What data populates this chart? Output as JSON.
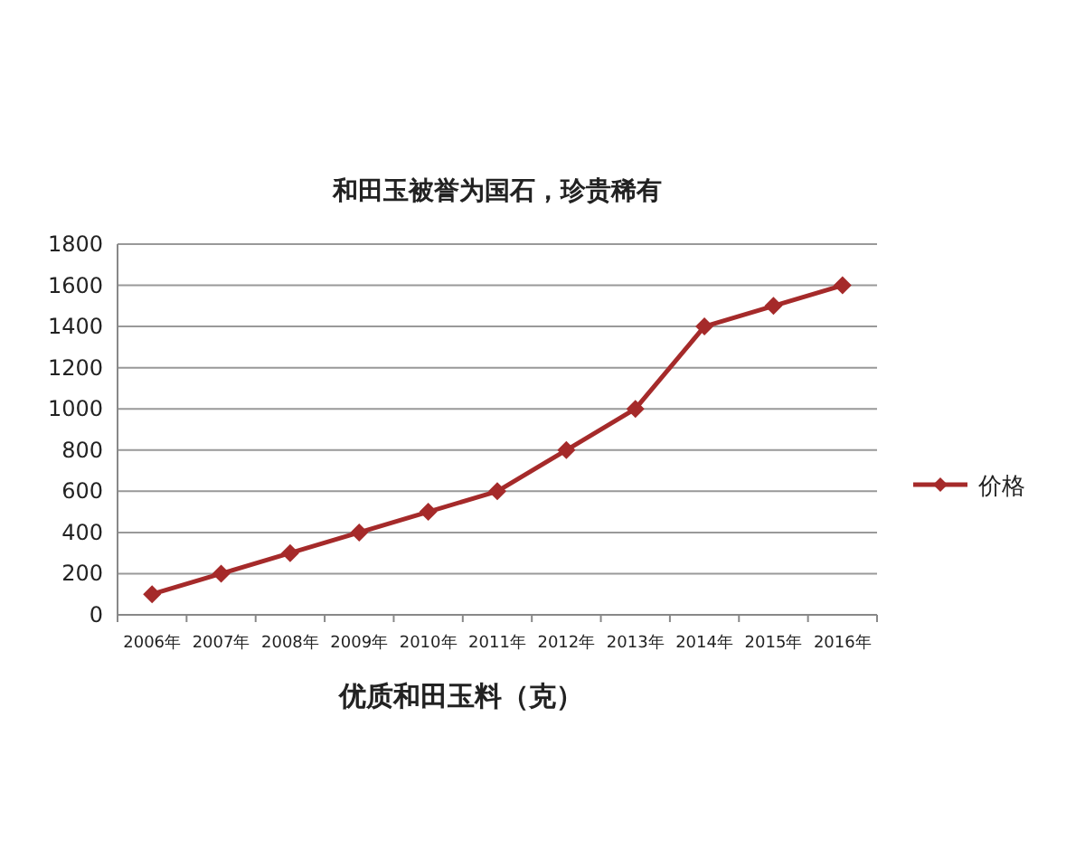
{
  "chart_data": {
    "type": "line",
    "title": "和田玉被誉为国石，珍贵稀有",
    "xlabel": "优质和田玉料（克）",
    "categories": [
      "2006年",
      "2007年",
      "2008年",
      "2009年",
      "2010年",
      "2011年",
      "2012年",
      "2013年",
      "2014年",
      "2015年",
      "2016年"
    ],
    "series": [
      {
        "name": "价格",
        "color": "#a52a2a",
        "values": [
          100,
          200,
          300,
          400,
          500,
          600,
          800,
          1000,
          1400,
          1500,
          1600
        ]
      }
    ],
    "ylim": [
      0,
      1800
    ],
    "yticks": [
      0,
      200,
      400,
      600,
      800,
      1000,
      1200,
      1400,
      1600,
      1800
    ],
    "grid": "y",
    "legend": "right",
    "marker": "diamond"
  }
}
